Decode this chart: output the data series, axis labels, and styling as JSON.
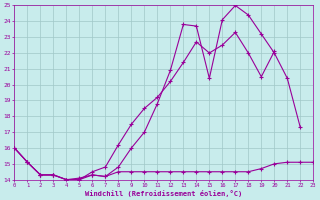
{
  "bg_color": "#c8ecec",
  "grid_color": "#a0c8c8",
  "line_color": "#990099",
  "xlabel": "Windchill (Refroidissement éolien,°C)",
  "xlabel_color": "#990099",
  "tick_color": "#990099",
  "xmin": 0,
  "xmax": 23,
  "ymin": 14,
  "ymax": 25,
  "line1_x": [
    0,
    1,
    2,
    3,
    4,
    5,
    6,
    7,
    8,
    9,
    10,
    11,
    12,
    13,
    14,
    15,
    16,
    17,
    18,
    19,
    20,
    21,
    22
  ],
  "line1_y": [
    16.0,
    15.1,
    14.3,
    14.3,
    14.0,
    14.0,
    14.3,
    14.2,
    14.8,
    16.0,
    17.0,
    18.8,
    20.9,
    23.8,
    23.7,
    20.4,
    24.1,
    25.0,
    24.4,
    23.2,
    22.0,
    20.4,
    17.3
  ],
  "line2_x": [
    0,
    1,
    2,
    3,
    4,
    5,
    6,
    7,
    8,
    9,
    10,
    11,
    12,
    13,
    14,
    15,
    16,
    17,
    18,
    19,
    20,
    21,
    22,
    23
  ],
  "line2_y": [
    16.0,
    15.1,
    14.3,
    14.3,
    14.0,
    14.1,
    14.3,
    14.2,
    14.5,
    14.5,
    14.5,
    14.5,
    14.5,
    14.5,
    14.5,
    14.5,
    14.5,
    14.5,
    14.5,
    14.7,
    15.0,
    15.1,
    15.1,
    15.1
  ],
  "line3_x": [
    0,
    1,
    2,
    3,
    4,
    5,
    6,
    7,
    8,
    9,
    10,
    11,
    12,
    13,
    14,
    15,
    16,
    17,
    18,
    19,
    20
  ],
  "line3_y": [
    16.0,
    15.1,
    14.3,
    14.3,
    14.0,
    14.0,
    14.5,
    14.8,
    16.2,
    17.5,
    18.5,
    19.2,
    20.2,
    21.4,
    22.7,
    22.0,
    22.5,
    23.3,
    22.0,
    20.5,
    22.1
  ]
}
